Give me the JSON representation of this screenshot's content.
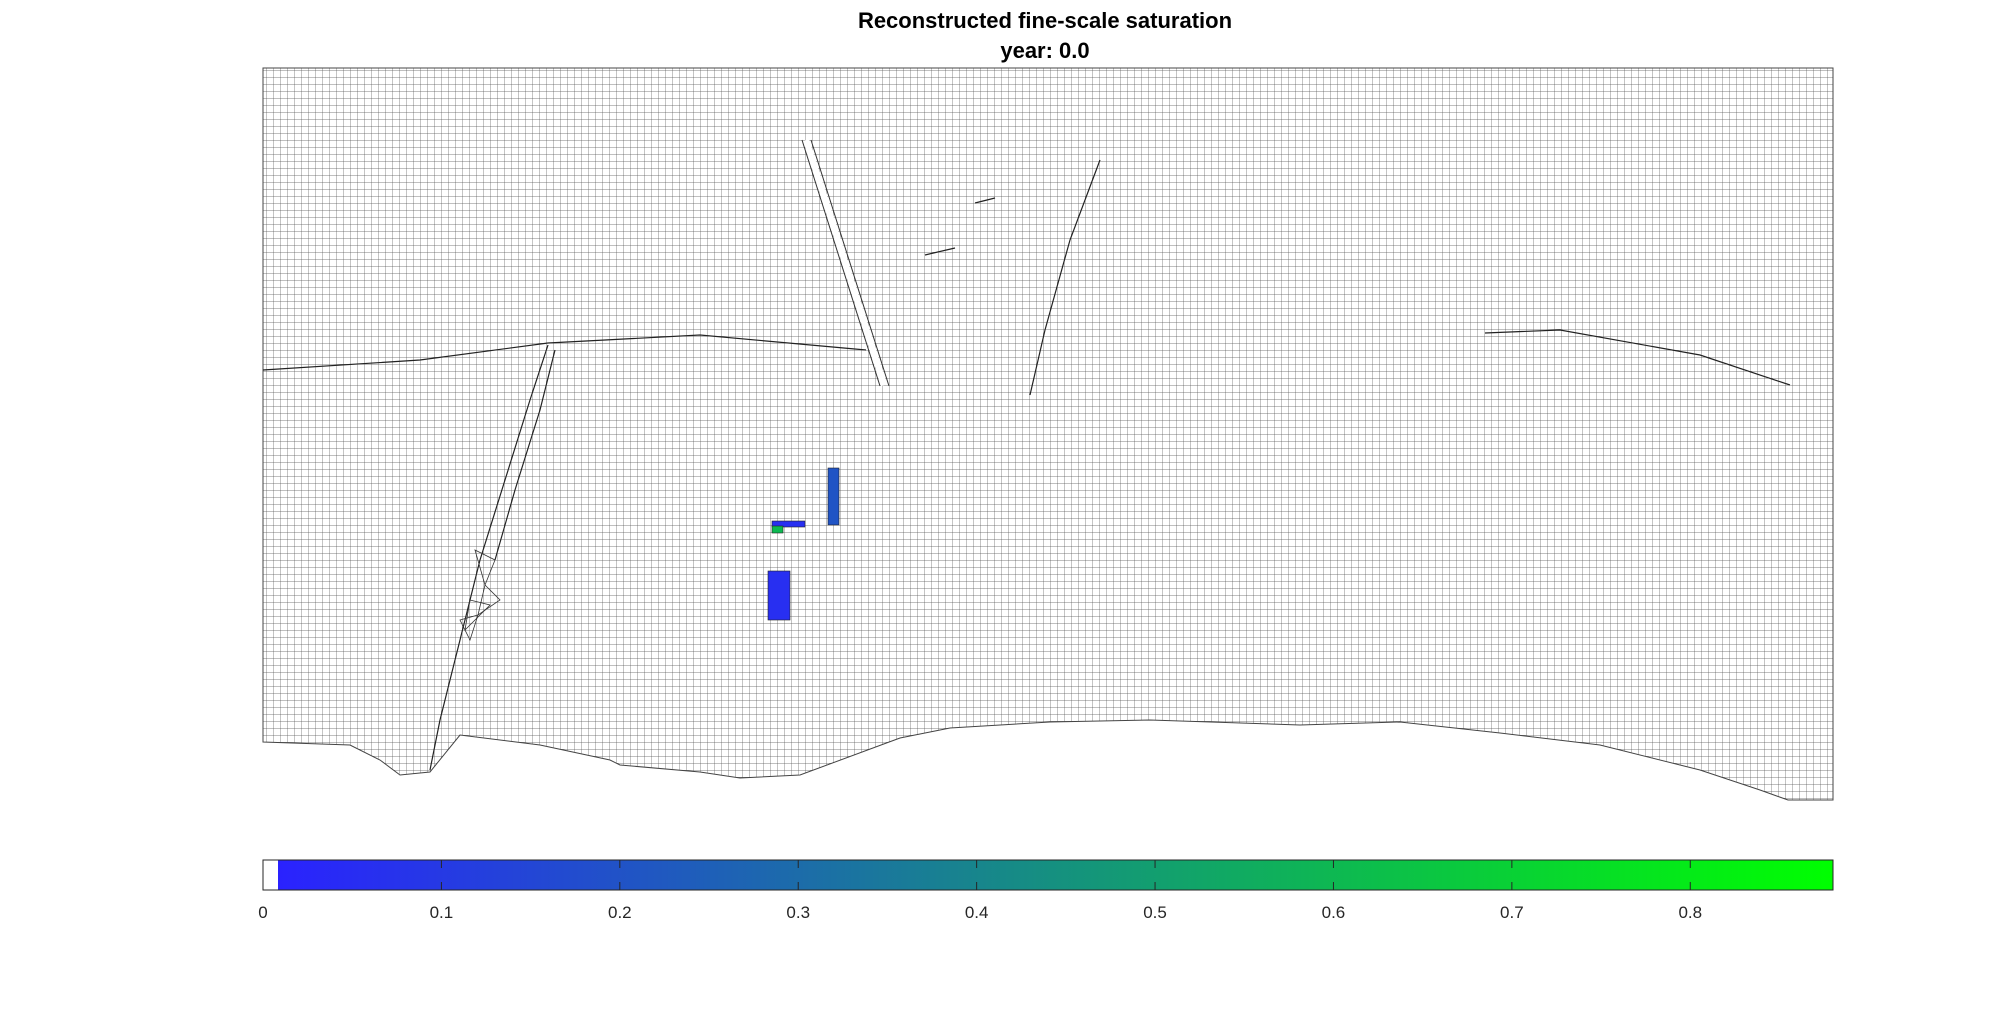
{
  "chart_data": {
    "type": "heatmap",
    "title": "Reconstructed fine-scale saturation",
    "subtitle": "year: 0.0",
    "colorbar": {
      "min": 0,
      "max": 0.88,
      "ticks": [
        0,
        0.1,
        0.2,
        0.3,
        0.4,
        0.5,
        0.6,
        0.7,
        0.8
      ],
      "tick_labels": [
        "0",
        "0.1",
        "0.2",
        "0.3",
        "0.4",
        "0.5",
        "0.6",
        "0.7",
        "0.8"
      ],
      "low_color": "#2a22ff",
      "high_color": "#00ff00",
      "zero_color": "#ffffff",
      "orientation": "horizontal",
      "placement": "bottom"
    },
    "mesh_line_color": "#000000",
    "saturated_regions": [
      {
        "name": "lower-left block",
        "saturation": 0.05
      },
      {
        "name": "upper block",
        "saturation": 0.2
      },
      {
        "name": "well connector",
        "saturation": 0.05
      },
      {
        "name": "well cell",
        "saturation": 0.6
      }
    ]
  }
}
